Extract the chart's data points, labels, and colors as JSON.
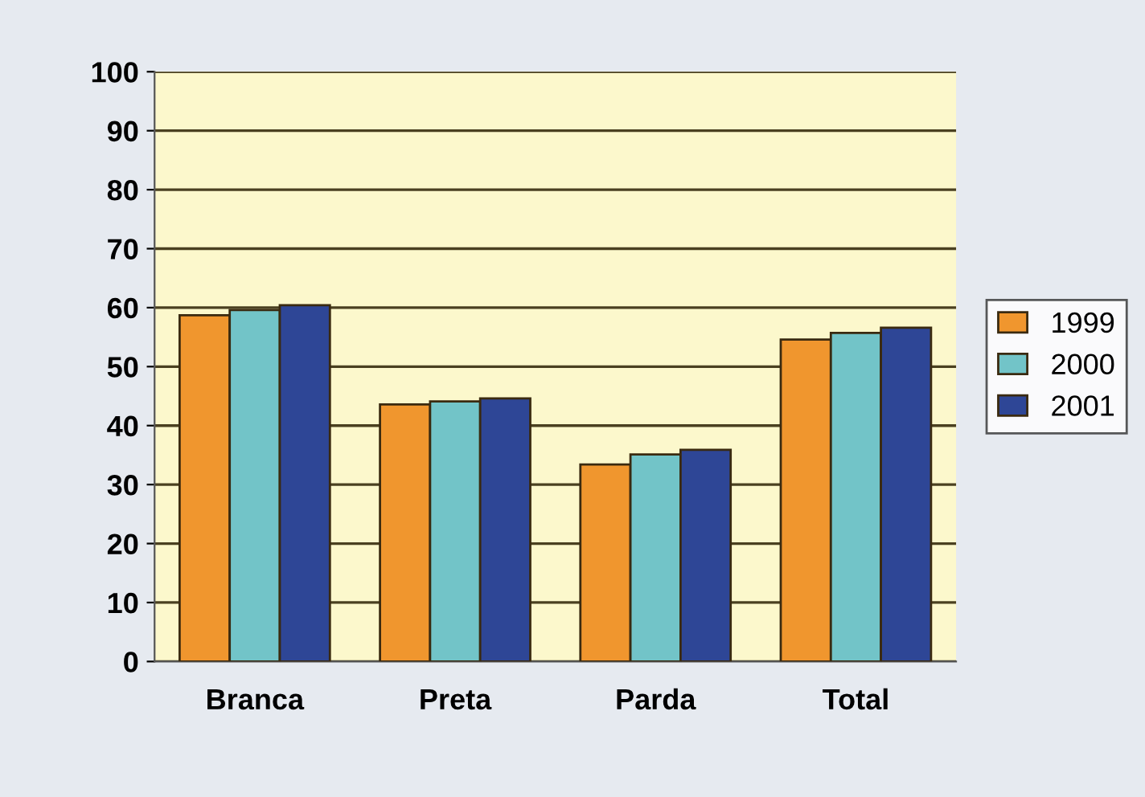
{
  "chart_data": {
    "type": "bar",
    "categories": [
      "Branca",
      "Preta",
      "Parda",
      "Total"
    ],
    "series": [
      {
        "name": "1999",
        "color": "#f0962e",
        "values": [
          58.7,
          43.6,
          33.4,
          54.6
        ]
      },
      {
        "name": "2000",
        "color": "#72c4c8",
        "values": [
          59.6,
          44.1,
          35.1,
          55.7
        ]
      },
      {
        "name": "2001",
        "color": "#2e4696",
        "values": [
          60.4,
          44.6,
          35.9,
          56.6
        ]
      }
    ],
    "ylim": [
      0,
      100
    ],
    "yticks": [
      0,
      10,
      20,
      30,
      40,
      50,
      60,
      70,
      80,
      90,
      100
    ],
    "grid": "y",
    "legend": "right"
  }
}
